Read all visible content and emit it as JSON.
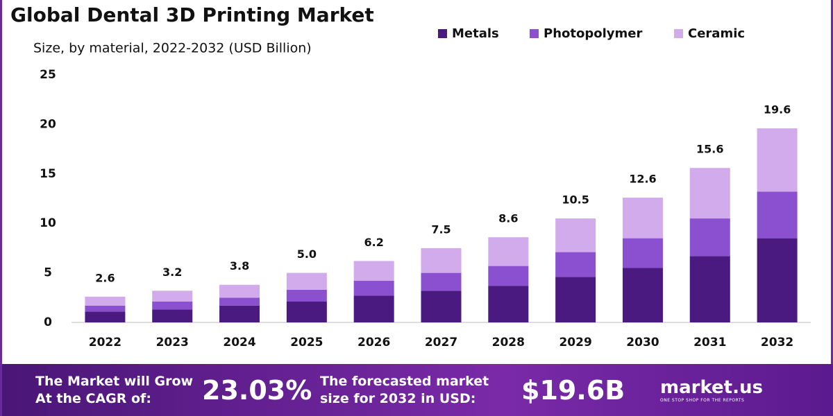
{
  "chart_data": {
    "type": "stacked_bar",
    "title": "Global Dental 3D Printing Market",
    "subtitle": "Size, by material, 2022-2032 (USD Billion)",
    "categories": [
      "2022",
      "2023",
      "2024",
      "2025",
      "2026",
      "2027",
      "2028",
      "2029",
      "2030",
      "2031",
      "2032"
    ],
    "series": [
      {
        "name": "Metals",
        "color": "#4b1a80",
        "values": [
          1.1,
          1.3,
          1.7,
          2.1,
          2.7,
          3.2,
          3.7,
          4.6,
          5.5,
          6.7,
          8.5
        ]
      },
      {
        "name": "Photopolymer",
        "color": "#8b50cf",
        "values": [
          0.6,
          0.8,
          0.8,
          1.2,
          1.5,
          1.8,
          2.0,
          2.5,
          3.0,
          3.8,
          4.7
        ]
      },
      {
        "name": "Ceramic",
        "color": "#d2abec",
        "values": [
          0.9,
          1.1,
          1.3,
          1.7,
          2.0,
          2.5,
          2.9,
          3.4,
          4.1,
          5.1,
          6.4
        ]
      }
    ],
    "totals": [
      2.6,
      3.2,
      3.8,
      5.0,
      6.2,
      7.5,
      8.6,
      10.5,
      12.6,
      15.6,
      19.6
    ],
    "total_labels": [
      "2.6",
      "3.2",
      "3.8",
      "5.0",
      "6.2",
      "7.5",
      "8.6",
      "10.5",
      "12.6",
      "15.6",
      "19.6"
    ],
    "ylim": [
      0,
      25
    ],
    "yticks": [
      0,
      5,
      10,
      15,
      20,
      25
    ],
    "grid": false,
    "legend": "top-right"
  },
  "footer": {
    "cagr_text": [
      "The Market will Grow",
      "At the CAGR of:"
    ],
    "cagr": "23.03%",
    "forecast_text": [
      "The forecasted market",
      "size for 2032 in USD:"
    ],
    "forecast": "$19.6B",
    "brand": "market.us",
    "tagline": "ONE STOP SHOP FOR THE REPORTS"
  }
}
